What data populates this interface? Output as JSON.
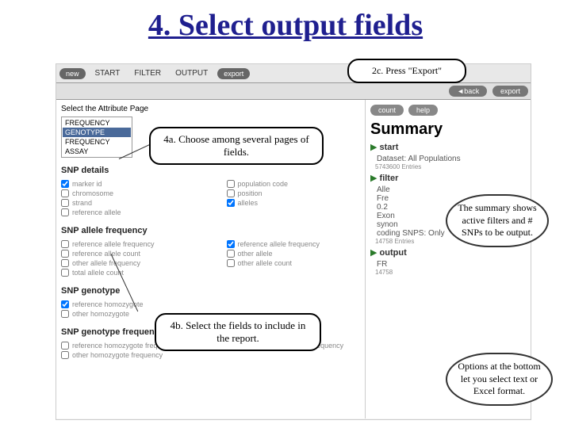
{
  "title": "4. Select output fields",
  "toolbar": {
    "new": "new",
    "start": "START",
    "filter": "FILTER",
    "output": "OUTPUT",
    "export": "export"
  },
  "subbar": {
    "back": "◄back",
    "export": "export"
  },
  "left": {
    "label": "Select the Attribute Page",
    "dropdown": [
      "FREQUENCY",
      "GENOTYPE",
      "FREQUENCY",
      "ASSAY"
    ],
    "selected": 1,
    "sections": [
      {
        "title": "SNP details",
        "cols": [
          [
            {
              "label": "marker id",
              "checked": true
            },
            {
              "label": "chromosome",
              "checked": false
            },
            {
              "label": "strand",
              "checked": false
            },
            {
              "label": "reference allele",
              "checked": false
            }
          ],
          [
            {
              "label": "population code",
              "checked": false
            },
            {
              "label": "position",
              "checked": false
            },
            {
              "label": "alleles",
              "checked": true
            }
          ]
        ]
      },
      {
        "title": "SNP allele frequency",
        "cols": [
          [
            {
              "label": "reference allele frequency",
              "checked": false
            },
            {
              "label": "reference allele count",
              "checked": false
            },
            {
              "label": "other allele frequency",
              "checked": false
            },
            {
              "label": "total allele count",
              "checked": false
            }
          ],
          [
            {
              "label": "reference allele frequency",
              "checked": true
            },
            {
              "label": "other allele",
              "checked": false
            },
            {
              "label": "other allele count",
              "checked": false
            }
          ]
        ]
      },
      {
        "title": "SNP genotype",
        "cols": [
          [
            {
              "label": "reference homozygote",
              "checked": true
            },
            {
              "label": "other homozygote",
              "checked": false
            }
          ],
          []
        ]
      },
      {
        "title": "SNP genotype frequency",
        "cols": [
          [
            {
              "label": "reference homozygote frequency",
              "checked": false
            },
            {
              "label": "other homozygote frequency",
              "checked": false
            }
          ],
          [
            {
              "label": "heterozygote genotype frequency",
              "checked": false
            }
          ]
        ]
      }
    ]
  },
  "right": {
    "count": "count",
    "help": "help",
    "summary": "Summary",
    "start": "start",
    "dataset": "Dataset: All Populations",
    "entries1": "5743600 Entries",
    "filter": "filter",
    "allele": "Alle",
    "freq": "Fre",
    "val": "0.2",
    "exon": "Exon",
    "synon": "synon",
    "coding": "coding SNPS: Only",
    "entries2": "14758 Entries",
    "output": "output",
    "fr": "FR",
    "entries3": "14758"
  },
  "callouts": {
    "c2c": "2c. Press \"Export\"",
    "c4a": "4a. Choose among several pages of fields.",
    "c4b": "4b. Select the fields to include in the report.",
    "cloud1": "The summary shows active filters and # SNPs to be output.",
    "cloud2": "Options at the bottom let you select text or Excel format."
  },
  "colors": {
    "title": "#1f1f8f",
    "btn": "#888888",
    "arrow": "#2a7a2a"
  }
}
